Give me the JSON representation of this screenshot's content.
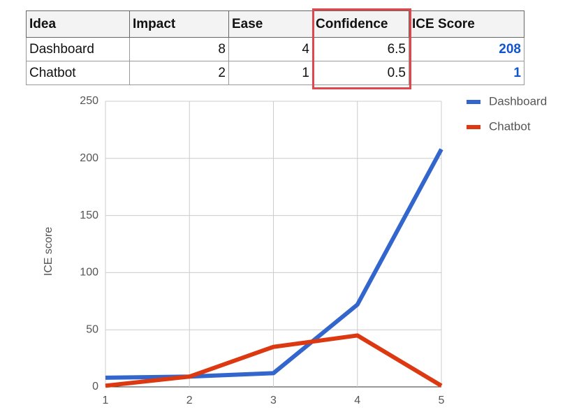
{
  "table": {
    "header": [
      "Idea",
      "Impact",
      "Ease",
      "Confidence",
      "ICE Score"
    ],
    "rows": [
      [
        "Dashboard",
        8,
        4,
        6.5,
        208
      ],
      [
        "Chatbot",
        2,
        1,
        0.5,
        1
      ]
    ]
  },
  "chart_data": {
    "type": "line",
    "y_label": "ICE score",
    "x": [
      1,
      2,
      3,
      4,
      5
    ],
    "xlim": [
      1,
      5
    ],
    "xticks": [
      1,
      2,
      3,
      4,
      5
    ],
    "ylim": [
      0,
      250
    ],
    "yticks": [
      0,
      50,
      100,
      150,
      200,
      250
    ],
    "grid": true,
    "legend": "right",
    "series": [
      {
        "name": "Dashboard",
        "color": "#3366cc",
        "values": [
          8,
          9,
          12,
          72,
          208
        ]
      },
      {
        "name": "Chatbot",
        "color": "#dc3912",
        "values": [
          1,
          9,
          35,
          45,
          1
        ]
      }
    ]
  }
}
